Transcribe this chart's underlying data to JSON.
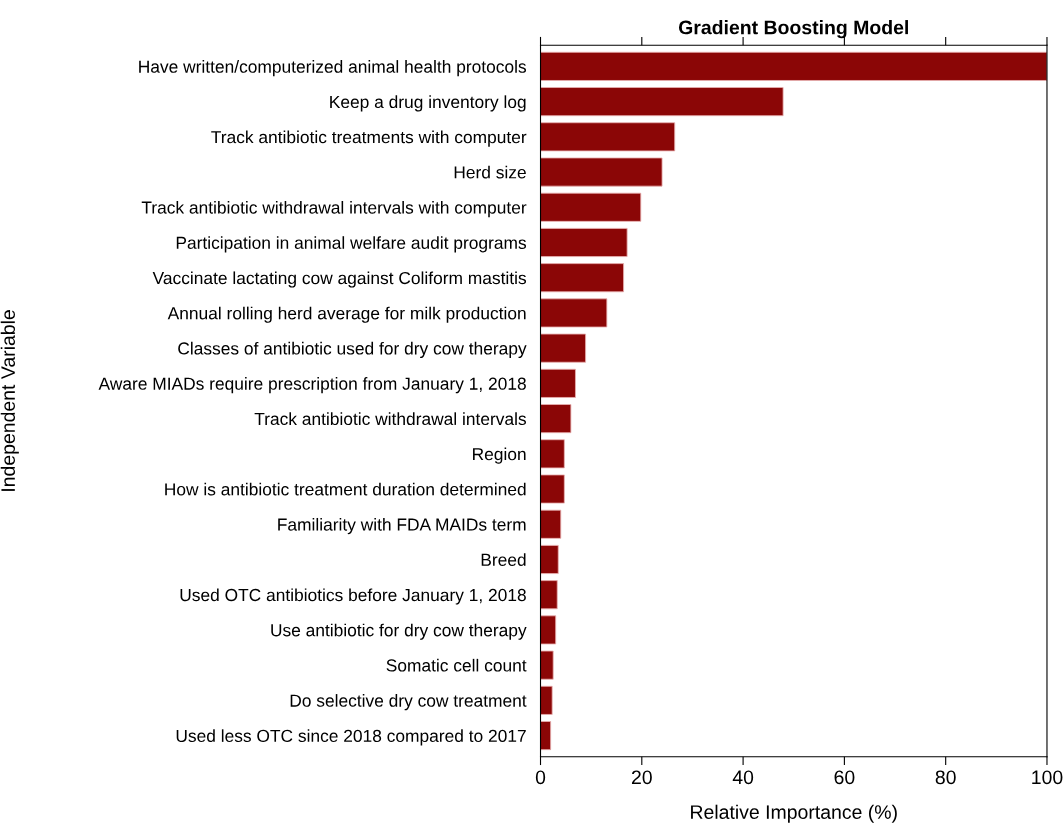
{
  "chart_data": {
    "type": "bar",
    "orientation": "horizontal",
    "title": "Gradient Boosting Model",
    "xlabel": "Relative Importance (%)",
    "ylabel": "Independent Variable",
    "categories": [
      "Have written/computerized animal health protocols",
      "Keep a drug inventory log",
      "Track antibiotic treatments with computer",
      "Herd size",
      "Track antibiotic withdrawal intervals with computer",
      "Participation in animal welfare audit programs",
      "Vaccinate lactating cow against Coliform mastitis",
      "Annual rolling herd average for milk production",
      "Classes of antibiotic used for dry cow therapy",
      "Aware MIADs require prescription from January 1, 2018",
      "Track antibiotic withdrawal intervals",
      "Region",
      "How is antibiotic treatment duration determined",
      "Familiarity with FDA MAIDs term",
      "Breed",
      "Used OTC antibiotics before January 1, 2018",
      "Use antibiotic for dry cow therapy",
      "Somatic cell count",
      "Do selective dry cow treatment",
      "Used less OTC since 2018 compared to 2017"
    ],
    "values": [
      100,
      47.9,
      26.5,
      24.0,
      19.8,
      17.1,
      16.4,
      13.1,
      8.9,
      6.9,
      6.0,
      4.7,
      4.7,
      4.0,
      3.5,
      3.3,
      3.0,
      2.5,
      2.3,
      2.0
    ],
    "color": "#8b0606",
    "xlim": [
      0,
      100
    ],
    "xticks": [
      0,
      20,
      40,
      60,
      80,
      100
    ],
    "grid": false,
    "legend": false
  }
}
